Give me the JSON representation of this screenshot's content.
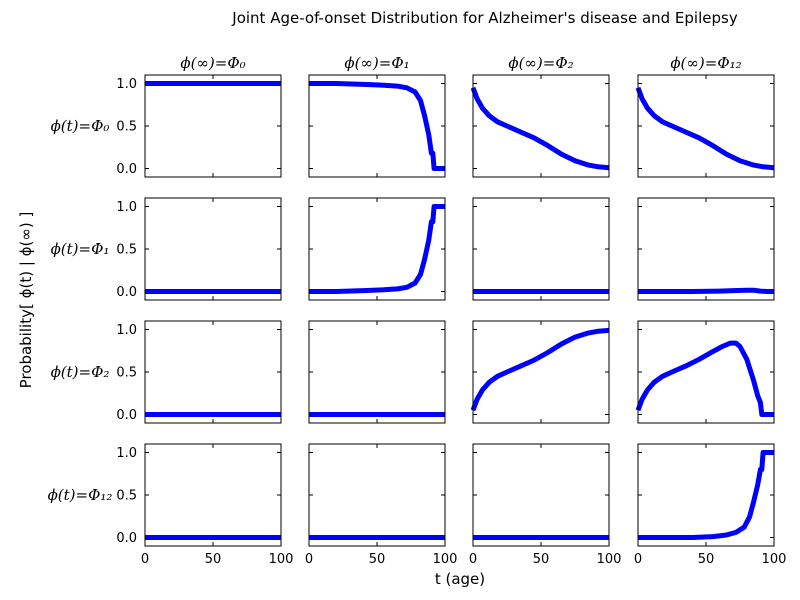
{
  "chart_data": {
    "type": "line",
    "title": "Joint Age-of-onset Distribution for Alzheimer's disease and Epilepsy",
    "xlabel": "t (age)",
    "ylabel": "Probability[ ϕ(t) | ϕ(∞) ]",
    "xlim": [
      0,
      100
    ],
    "ylim": [
      -0.1,
      1.1
    ],
    "xticks": [
      0,
      50,
      100
    ],
    "xtick_labels": [
      "0",
      "50",
      "100"
    ],
    "yticks": [
      0.0,
      0.5,
      1.0
    ],
    "ytick_labels": [
      "0.0",
      "0.5",
      "1.0"
    ],
    "grid": false,
    "line_color": "#0000ff",
    "col_labels": [
      "ϕ(∞)=Φ₀",
      "ϕ(∞)=Φ₁",
      "ϕ(∞)=Φ₂",
      "ϕ(∞)=Φ₁₂"
    ],
    "row_labels": [
      "ϕ(t)=Φ₀",
      "ϕ(t)=Φ₁",
      "ϕ(t)=Φ₂",
      "ϕ(t)=Φ₁₂"
    ],
    "panels": [
      [
        {
          "x": [
            0,
            100
          ],
          "y": [
            1.0,
            1.0
          ]
        },
        {
          "x": [
            0,
            20,
            40,
            55,
            65,
            72,
            78,
            82,
            85,
            88,
            90,
            91,
            92,
            100
          ],
          "y": [
            1.0,
            1.0,
            0.99,
            0.98,
            0.97,
            0.95,
            0.9,
            0.8,
            0.62,
            0.4,
            0.18,
            0.18,
            0.0,
            0.0
          ]
        },
        {
          "x": [
            0,
            3,
            7,
            12,
            18,
            25,
            35,
            45,
            55,
            65,
            75,
            85,
            92,
            100
          ],
          "y": [
            0.95,
            0.82,
            0.71,
            0.62,
            0.55,
            0.5,
            0.43,
            0.36,
            0.27,
            0.17,
            0.09,
            0.04,
            0.02,
            0.01
          ]
        },
        {
          "x": [
            0,
            3,
            7,
            12,
            18,
            25,
            35,
            45,
            55,
            65,
            75,
            85,
            92,
            100
          ],
          "y": [
            0.95,
            0.82,
            0.71,
            0.62,
            0.55,
            0.5,
            0.43,
            0.36,
            0.27,
            0.17,
            0.09,
            0.04,
            0.02,
            0.01
          ]
        }
      ],
      [
        {
          "x": [
            0,
            100
          ],
          "y": [
            0.0,
            0.0
          ]
        },
        {
          "x": [
            0,
            20,
            40,
            55,
            65,
            72,
            78,
            82,
            85,
            88,
            90,
            91,
            92,
            100
          ],
          "y": [
            0.0,
            0.0,
            0.01,
            0.02,
            0.03,
            0.05,
            0.1,
            0.2,
            0.38,
            0.6,
            0.82,
            0.82,
            1.0,
            1.0
          ]
        },
        {
          "x": [
            0,
            100
          ],
          "y": [
            0.0,
            0.0
          ]
        },
        {
          "x": [
            0,
            20,
            40,
            60,
            70,
            80,
            85,
            90,
            95,
            100
          ],
          "y": [
            0.0,
            0.0,
            0.0,
            0.005,
            0.01,
            0.015,
            0.015,
            0.005,
            0.0,
            0.0
          ]
        }
      ],
      [
        {
          "x": [
            0,
            100
          ],
          "y": [
            0.0,
            0.0
          ]
        },
        {
          "x": [
            0,
            100
          ],
          "y": [
            0.0,
            0.0
          ]
        },
        {
          "x": [
            0,
            3,
            7,
            12,
            18,
            25,
            35,
            45,
            55,
            65,
            75,
            85,
            92,
            100
          ],
          "y": [
            0.05,
            0.18,
            0.29,
            0.38,
            0.45,
            0.5,
            0.57,
            0.64,
            0.73,
            0.83,
            0.91,
            0.96,
            0.98,
            0.99
          ]
        },
        {
          "x": [
            0,
            3,
            7,
            12,
            18,
            25,
            35,
            45,
            55,
            62,
            68,
            72,
            75,
            80,
            85,
            88,
            90,
            91,
            100
          ],
          "y": [
            0.05,
            0.18,
            0.29,
            0.38,
            0.45,
            0.5,
            0.57,
            0.65,
            0.74,
            0.8,
            0.84,
            0.84,
            0.8,
            0.65,
            0.4,
            0.22,
            0.14,
            0.0,
            0.0
          ]
        }
      ],
      [
        {
          "x": [
            0,
            100
          ],
          "y": [
            0.0,
            0.0
          ]
        },
        {
          "x": [
            0,
            100
          ],
          "y": [
            0.0,
            0.0
          ]
        },
        {
          "x": [
            0,
            100
          ],
          "y": [
            0.0,
            0.0
          ]
        },
        {
          "x": [
            0,
            20,
            40,
            55,
            65,
            72,
            78,
            82,
            85,
            88,
            90,
            91,
            92,
            100
          ],
          "y": [
            0.0,
            0.0,
            0.0,
            0.01,
            0.03,
            0.06,
            0.12,
            0.24,
            0.42,
            0.62,
            0.8,
            0.8,
            1.0,
            1.0
          ]
        }
      ]
    ]
  }
}
